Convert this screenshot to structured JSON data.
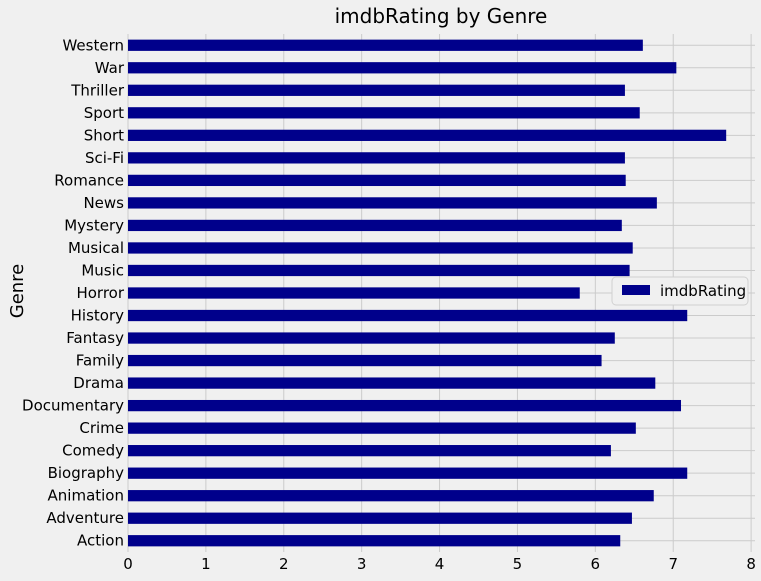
{
  "chart_data": {
    "type": "bar",
    "orientation": "horizontal",
    "title": "imdbRating by Genre",
    "xlabel": "",
    "ylabel": "Genre",
    "xlim": [
      0,
      8.05
    ],
    "xticks": [
      0,
      1,
      2,
      3,
      4,
      5,
      6,
      7,
      8
    ],
    "grid": true,
    "legend": {
      "placement": "center-right",
      "entries": [
        "imdbRating"
      ]
    },
    "colors": {
      "bar": "#00008b",
      "background": "#f0f0f0",
      "grid": "#cbcbcb"
    },
    "categories": [
      "Action",
      "Adventure",
      "Animation",
      "Biography",
      "Comedy",
      "Crime",
      "Documentary",
      "Drama",
      "Family",
      "Fantasy",
      "History",
      "Horror",
      "Music",
      "Musical",
      "Mystery",
      "News",
      "Romance",
      "Sci-Fi",
      "Short",
      "Sport",
      "Thriller",
      "War",
      "Western"
    ],
    "series": [
      {
        "name": "imdbRating",
        "values": [
          6.32,
          6.47,
          6.75,
          7.18,
          6.2,
          6.52,
          7.1,
          6.77,
          6.08,
          6.25,
          7.18,
          5.8,
          6.44,
          6.48,
          6.34,
          6.79,
          6.39,
          6.38,
          7.68,
          6.57,
          6.38,
          7.04,
          6.61
        ]
      }
    ]
  }
}
